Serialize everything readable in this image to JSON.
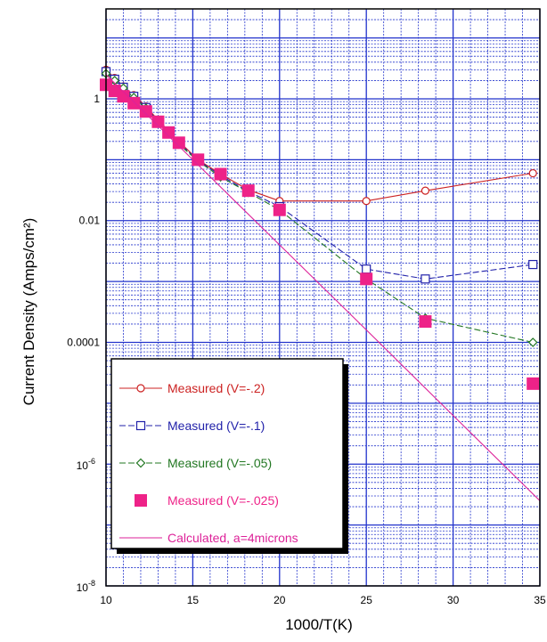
{
  "chart_data": {
    "type": "line",
    "title": "",
    "xlabel": "1000/T(K)",
    "ylabel": "Current Density (Amps/cm²)",
    "xlim": [
      10,
      35
    ],
    "ylim": [
      1e-08,
      30
    ],
    "yscale": "log",
    "grid": true,
    "legend_position": "bottom-left",
    "x_ticks": [
      {
        "value": 10,
        "label": "10"
      },
      {
        "value": 15,
        "label": "15"
      },
      {
        "value": 20,
        "label": "20"
      },
      {
        "value": 25,
        "label": "25"
      },
      {
        "value": 30,
        "label": "30"
      },
      {
        "value": 35,
        "label": "35"
      }
    ],
    "y_ticks": [
      {
        "value": 1e-08,
        "base": "10",
        "exp": "-8"
      },
      {
        "value": 1e-06,
        "base": "10",
        "exp": "-6"
      },
      {
        "value": 0.0001,
        "label": "0.0001"
      },
      {
        "value": 0.01,
        "label": "0.01"
      },
      {
        "value": 1,
        "label": "1"
      }
    ],
    "series": [
      {
        "name": "Measured  (V=-.2)",
        "color": "#cc2222",
        "marker": "circle-open",
        "dash": "solid",
        "x": [
          10.0,
          10.5,
          11.0,
          11.6,
          12.3,
          13.0,
          13.6,
          14.2,
          15.3,
          16.6,
          18.2,
          20.0,
          25.0,
          28.4,
          34.6
        ],
        "y": [
          3.0,
          2.2,
          1.6,
          1.15,
          0.75,
          0.45,
          0.3,
          0.2,
          0.1,
          0.058,
          0.032,
          0.021,
          0.021,
          0.031,
          0.06
        ]
      },
      {
        "name": "Measured (V=-.1)",
        "color": "#2222aa",
        "marker": "square-open",
        "dash": "dashed",
        "x": [
          10.0,
          10.5,
          11.0,
          11.6,
          12.3,
          13.0,
          13.6,
          14.2,
          15.3,
          16.6,
          18.2,
          20.0,
          25.0,
          28.4,
          34.6
        ],
        "y": [
          2.8,
          2.1,
          1.55,
          1.1,
          0.72,
          0.43,
          0.28,
          0.19,
          0.098,
          0.055,
          0.03,
          0.017,
          0.0016,
          0.0011,
          0.0019
        ]
      },
      {
        "name": "Measured (V=-.05)",
        "color": "#227722",
        "marker": "diamond-open",
        "dash": "dashed",
        "x": [
          10.0,
          10.5,
          11.0,
          11.6,
          12.3,
          13.0,
          13.6,
          14.2,
          15.3,
          16.6,
          18.2,
          20.0,
          25.0,
          28.4,
          34.6
        ],
        "y": [
          2.6,
          2.0,
          1.5,
          1.05,
          0.7,
          0.42,
          0.28,
          0.18,
          0.095,
          0.052,
          0.029,
          0.015,
          0.0011,
          0.00025,
          0.0001
        ]
      },
      {
        "name": "Measured (V=-.025)",
        "color": "#ee2288",
        "marker": "square-filled",
        "dash": "none",
        "x": [
          10.0,
          10.5,
          11.0,
          11.6,
          12.3,
          13.0,
          13.6,
          14.2,
          15.3,
          16.6,
          18.2,
          20.0,
          25.0,
          28.4,
          34.6
        ],
        "y": [
          1.7,
          1.35,
          1.1,
          0.85,
          0.62,
          0.42,
          0.28,
          0.19,
          0.1,
          0.058,
          0.031,
          0.015,
          0.0011,
          0.00022,
          2.1e-05
        ]
      },
      {
        "name": "Calculated,  a=4microns",
        "color": "#dd2299",
        "marker": "none",
        "dash": "solid",
        "x": [
          10.0,
          15.0,
          20.0,
          25.0,
          30.0,
          35.0
        ],
        "y": [
          2.5,
          0.1,
          0.004,
          0.00016,
          6.3e-06,
          2.5e-07
        ]
      }
    ]
  }
}
